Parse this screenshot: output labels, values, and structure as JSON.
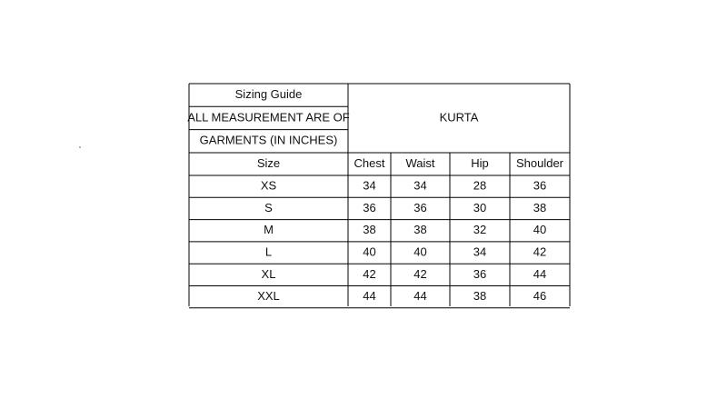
{
  "table": {
    "title": "Sizing Guide",
    "note": [
      "ALL MEASUREMENT ARE OF",
      "GARMENTS (IN INCHES)"
    ],
    "product": "KURTA",
    "columns": [
      "Size",
      "Chest",
      "Waist",
      "Hip",
      "Shoulder"
    ],
    "rows": [
      [
        "XS",
        34,
        34,
        28,
        36
      ],
      [
        "S",
        36,
        36,
        30,
        38
      ],
      [
        "M",
        38,
        38,
        32,
        40
      ],
      [
        "L",
        40,
        40,
        34,
        42
      ],
      [
        "XL",
        42,
        42,
        36,
        44
      ],
      [
        "XXL",
        44,
        44,
        38,
        46
      ]
    ]
  }
}
